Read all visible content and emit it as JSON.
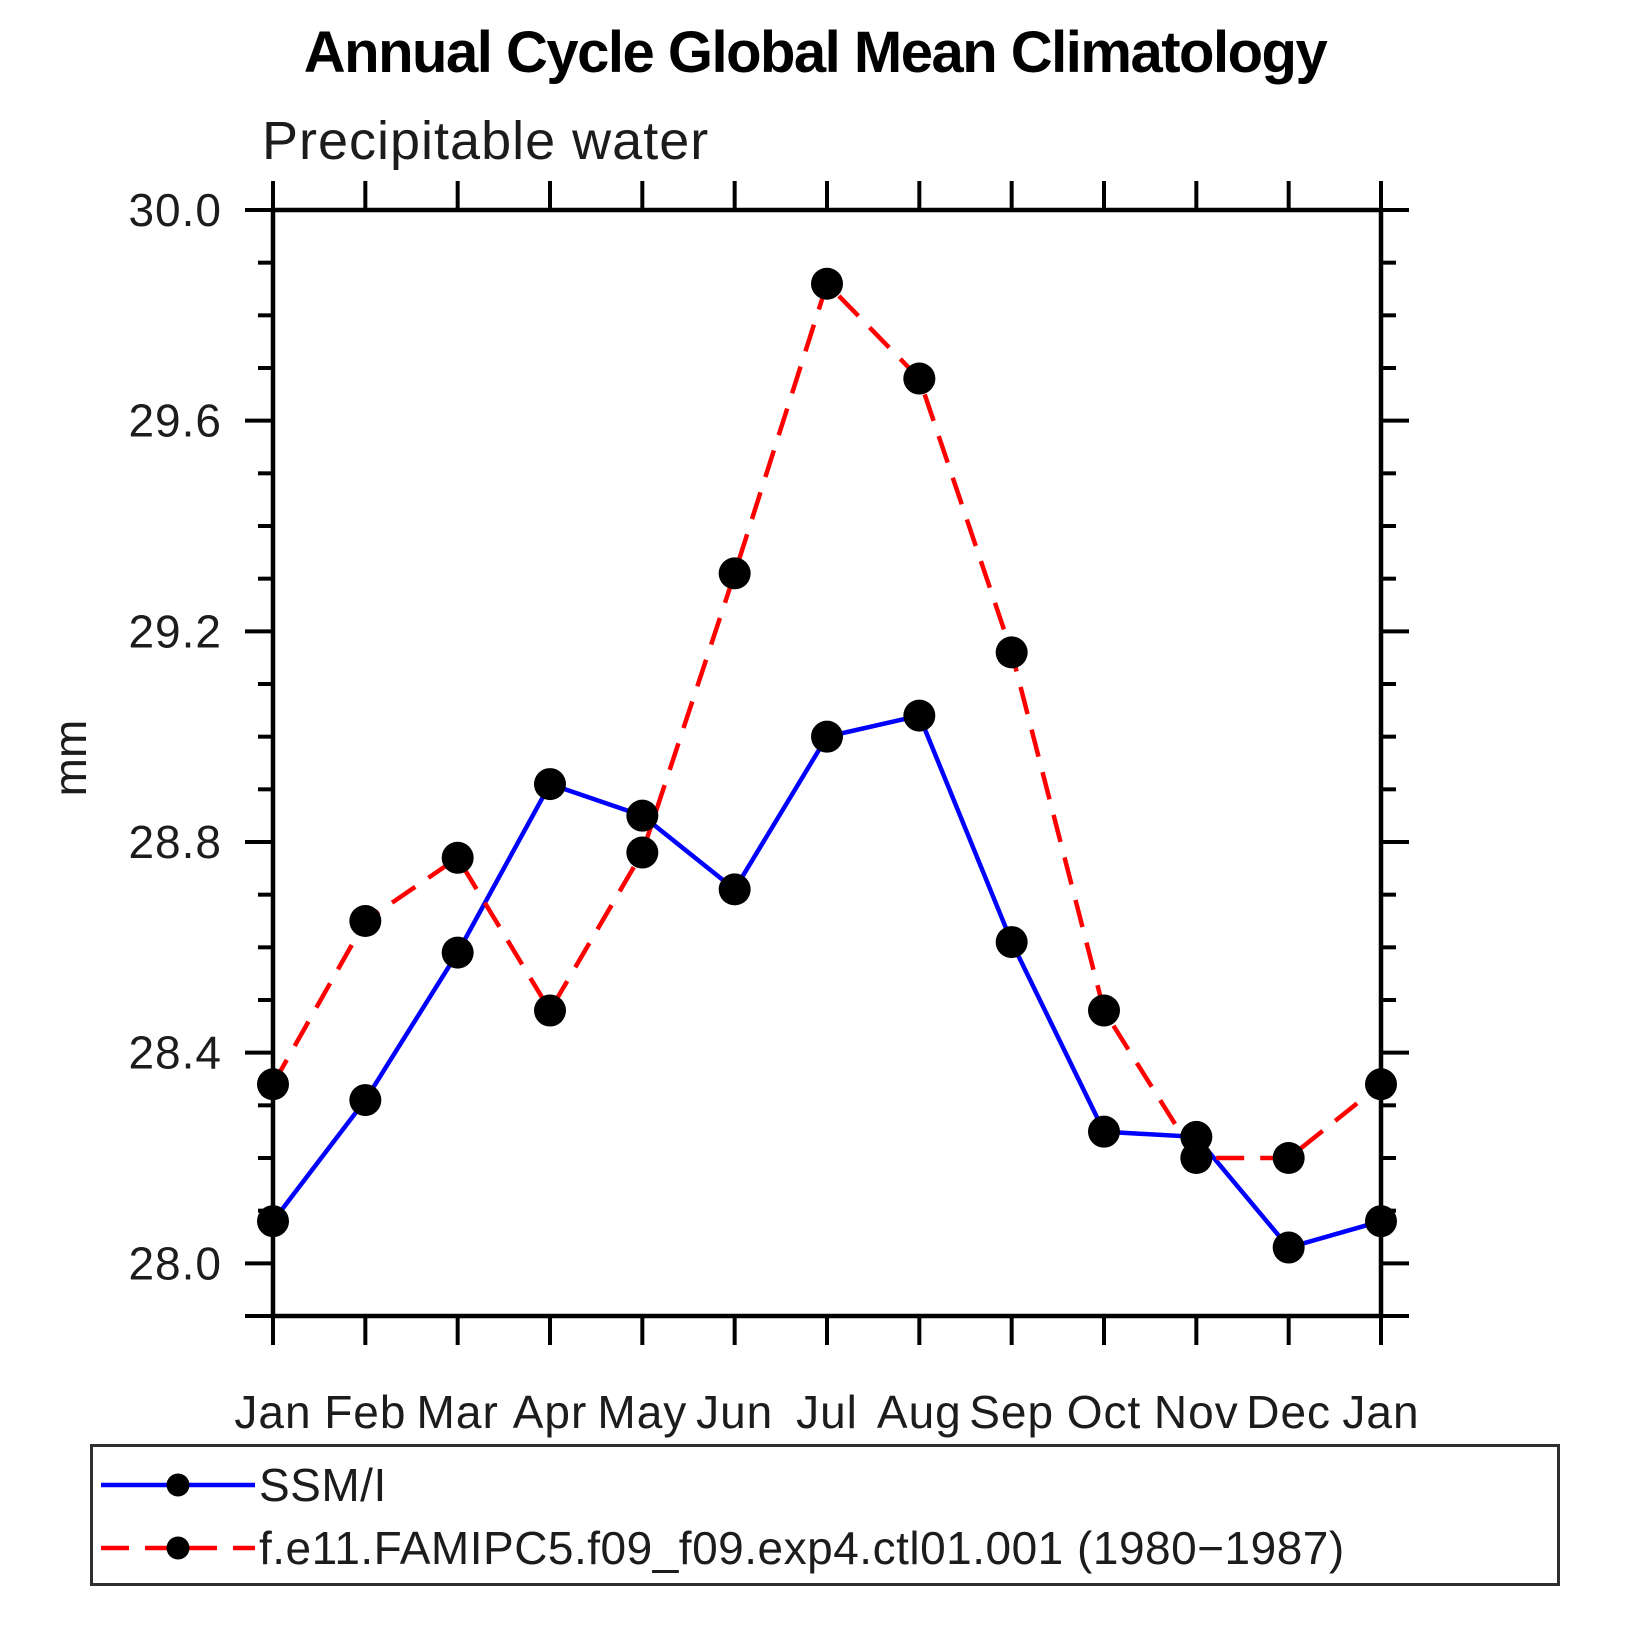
{
  "figure": {
    "title": "Annual Cycle Global Mean Climatology",
    "subtitle": "Precipitable water",
    "y_axis_label": "mm"
  },
  "legend": {
    "items": [
      {
        "label": "SSM/I",
        "line_color": "#0000ff",
        "line_style": "solid",
        "marker": "filled-circle-icon",
        "marker_color": "#000000"
      },
      {
        "label": "f.e11.FAMIPC5.f09_f09.exp4.ctl01.001 (1980−1987)",
        "line_color": "#ff0000",
        "line_style": "dashed",
        "marker": "filled-circle-icon",
        "marker_color": "#000000"
      }
    ]
  },
  "chart_data": {
    "type": "line",
    "title": "Annual Cycle Global Mean Climatology",
    "subtitle": "Precipitable water",
    "xlabel": "",
    "ylabel": "mm",
    "categories": [
      "Jan",
      "Feb",
      "Mar",
      "Apr",
      "May",
      "Jun",
      "Jul",
      "Aug",
      "Sep",
      "Oct",
      "Nov",
      "Dec",
      "Jan"
    ],
    "series": [
      {
        "name": "SSM/I",
        "color": "#0000ff",
        "style": "solid",
        "marker": "circle",
        "marker_color": "#000000",
        "values": [
          28.08,
          28.31,
          28.59,
          28.91,
          28.85,
          28.71,
          29.0,
          29.04,
          28.61,
          28.25,
          28.24,
          28.03,
          28.08
        ]
      },
      {
        "name": "f.e11.FAMIPC5.f09_f09.exp4.ctl01.001 (1980−1987)",
        "color": "#ff0000",
        "style": "dashed",
        "marker": "circle",
        "marker_color": "#000000",
        "values": [
          28.34,
          28.65,
          28.77,
          28.48,
          28.78,
          29.31,
          29.86,
          29.68,
          29.16,
          28.48,
          28.2,
          28.2,
          28.34
        ]
      }
    ],
    "ylim": [
      27.9,
      30.0
    ],
    "y_major_ticks": [
      28.0,
      28.4,
      28.8,
      29.2,
      29.6,
      30.0
    ],
    "y_major_tick_labels": [
      "28.0",
      "28.4",
      "28.8",
      "29.2",
      "29.6",
      "30.0"
    ],
    "y_minor_step": 0.1,
    "grid": false,
    "legend_position": "bottom"
  }
}
